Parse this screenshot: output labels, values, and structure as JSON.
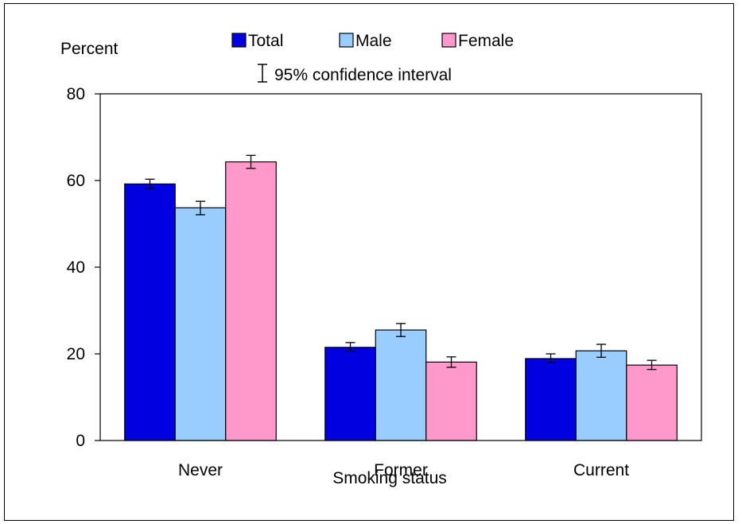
{
  "chart_data": {
    "type": "bar",
    "categories": [
      "Never",
      "Former",
      "Current"
    ],
    "series": [
      {
        "name": "Total",
        "color": "#0000e0",
        "values": [
          59.2,
          21.5,
          18.9
        ],
        "ci_low": [
          58.2,
          20.6,
          18.0
        ],
        "ci_high": [
          60.3,
          22.6,
          20.0
        ]
      },
      {
        "name": "Male",
        "color": "#99ccff",
        "values": [
          53.7,
          25.5,
          20.7
        ],
        "ci_low": [
          52.1,
          24.0,
          19.2
        ],
        "ci_high": [
          55.2,
          27.0,
          22.2
        ]
      },
      {
        "name": "Female",
        "color": "#ff99cc",
        "values": [
          64.3,
          18.1,
          17.4
        ],
        "ci_low": [
          62.8,
          16.9,
          16.4
        ],
        "ci_high": [
          65.8,
          19.3,
          18.5
        ]
      }
    ],
    "ylabel": "Percent",
    "xlabel": "Smoking status",
    "ylim": [
      0,
      80
    ],
    "yticks": [
      "0",
      "20",
      "40",
      "60",
      "80"
    ],
    "ytick_values": [
      0,
      20,
      40,
      60,
      80
    ],
    "ci_legend_label": "95% confidence interval",
    "grid": false,
    "legend_position": "top"
  }
}
